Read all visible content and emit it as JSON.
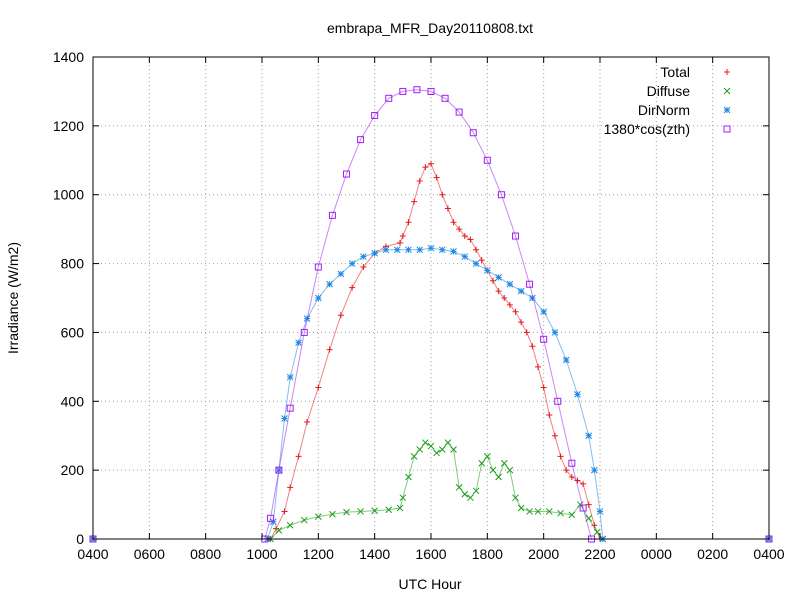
{
  "chart_data": {
    "type": "scatter",
    "title": "embrapa_MFR_Day20110808.txt",
    "xlabel": "UTC Hour",
    "ylabel": "Irradiance (W/m2)",
    "xlim": [
      4,
      28
    ],
    "ylim": [
      0,
      1400
    ],
    "x_tick_values": [
      4,
      6,
      8,
      10,
      12,
      14,
      16,
      18,
      20,
      22,
      24,
      26,
      28
    ],
    "x_tick_labels": [
      "0400",
      "0600",
      "0800",
      "1000",
      "1200",
      "1400",
      "1600",
      "1800",
      "2000",
      "2200",
      "0000",
      "0200",
      "0400"
    ],
    "y_tick_values": [
      0,
      200,
      400,
      600,
      800,
      1000,
      1200,
      1400
    ],
    "y_tick_labels": [
      "0",
      "200",
      "400",
      "600",
      "800",
      "1000",
      "1200",
      "1400"
    ],
    "grid": true,
    "legend_position": "top-right",
    "series": [
      {
        "name": "Total",
        "color": "#e41a1c",
        "marker": "plus",
        "points": [
          [
            4,
            0
          ],
          [
            10.3,
            0
          ],
          [
            10.5,
            30
          ],
          [
            10.8,
            80
          ],
          [
            11.0,
            150
          ],
          [
            11.3,
            240
          ],
          [
            11.6,
            340
          ],
          [
            12.0,
            440
          ],
          [
            12.4,
            550
          ],
          [
            12.8,
            650
          ],
          [
            13.2,
            730
          ],
          [
            13.6,
            790
          ],
          [
            14.0,
            830
          ],
          [
            14.4,
            850
          ],
          [
            14.9,
            860
          ],
          [
            15.0,
            880
          ],
          [
            15.2,
            920
          ],
          [
            15.4,
            980
          ],
          [
            15.6,
            1040
          ],
          [
            15.8,
            1080
          ],
          [
            16.0,
            1090
          ],
          [
            16.2,
            1050
          ],
          [
            16.4,
            1000
          ],
          [
            16.6,
            960
          ],
          [
            16.8,
            920
          ],
          [
            17.0,
            900
          ],
          [
            17.2,
            880
          ],
          [
            17.4,
            870
          ],
          [
            17.6,
            840
          ],
          [
            17.8,
            810
          ],
          [
            18.0,
            780
          ],
          [
            18.2,
            750
          ],
          [
            18.4,
            720
          ],
          [
            18.6,
            700
          ],
          [
            18.8,
            680
          ],
          [
            19.0,
            660
          ],
          [
            19.2,
            630
          ],
          [
            19.4,
            600
          ],
          [
            19.6,
            560
          ],
          [
            19.8,
            500
          ],
          [
            20.0,
            440
          ],
          [
            20.2,
            360
          ],
          [
            20.4,
            300
          ],
          [
            20.6,
            240
          ],
          [
            20.8,
            200
          ],
          [
            21.0,
            180
          ],
          [
            21.2,
            170
          ],
          [
            21.4,
            160
          ],
          [
            21.6,
            100
          ],
          [
            21.8,
            40
          ],
          [
            22.0,
            0
          ],
          [
            28,
            0
          ]
        ]
      },
      {
        "name": "Diffuse",
        "color": "#1b9e1b",
        "marker": "cross",
        "points": [
          [
            4,
            0
          ],
          [
            10.3,
            0
          ],
          [
            10.6,
            25
          ],
          [
            11.0,
            40
          ],
          [
            11.5,
            55
          ],
          [
            12.0,
            65
          ],
          [
            12.5,
            72
          ],
          [
            13.0,
            78
          ],
          [
            13.5,
            80
          ],
          [
            14.0,
            82
          ],
          [
            14.5,
            85
          ],
          [
            14.9,
            90
          ],
          [
            15.0,
            120
          ],
          [
            15.2,
            180
          ],
          [
            15.4,
            240
          ],
          [
            15.6,
            260
          ],
          [
            15.8,
            280
          ],
          [
            16.0,
            270
          ],
          [
            16.2,
            250
          ],
          [
            16.4,
            260
          ],
          [
            16.6,
            280
          ],
          [
            16.8,
            260
          ],
          [
            17.0,
            150
          ],
          [
            17.2,
            130
          ],
          [
            17.4,
            120
          ],
          [
            17.6,
            140
          ],
          [
            17.8,
            220
          ],
          [
            18.0,
            240
          ],
          [
            18.2,
            200
          ],
          [
            18.4,
            180
          ],
          [
            18.6,
            220
          ],
          [
            18.8,
            200
          ],
          [
            19.0,
            120
          ],
          [
            19.2,
            90
          ],
          [
            19.5,
            80
          ],
          [
            19.8,
            80
          ],
          [
            20.2,
            80
          ],
          [
            20.6,
            75
          ],
          [
            21.0,
            70
          ],
          [
            21.3,
            100
          ],
          [
            21.6,
            60
          ],
          [
            21.9,
            20
          ],
          [
            22.1,
            0
          ],
          [
            28,
            0
          ]
        ]
      },
      {
        "name": "DirNorm",
        "color": "#1e88e5",
        "marker": "star",
        "points": [
          [
            4,
            0
          ],
          [
            10.2,
            0
          ],
          [
            10.4,
            50
          ],
          [
            10.6,
            200
          ],
          [
            10.8,
            350
          ],
          [
            11.0,
            470
          ],
          [
            11.3,
            570
          ],
          [
            11.6,
            640
          ],
          [
            12.0,
            700
          ],
          [
            12.4,
            740
          ],
          [
            12.8,
            770
          ],
          [
            13.2,
            800
          ],
          [
            13.6,
            820
          ],
          [
            14.0,
            830
          ],
          [
            14.4,
            840
          ],
          [
            14.8,
            840
          ],
          [
            15.2,
            840
          ],
          [
            15.6,
            840
          ],
          [
            16.0,
            845
          ],
          [
            16.4,
            840
          ],
          [
            16.8,
            835
          ],
          [
            17.2,
            820
          ],
          [
            17.6,
            800
          ],
          [
            18.0,
            780
          ],
          [
            18.4,
            760
          ],
          [
            18.8,
            740
          ],
          [
            19.2,
            720
          ],
          [
            19.6,
            700
          ],
          [
            20.0,
            660
          ],
          [
            20.4,
            600
          ],
          [
            20.8,
            520
          ],
          [
            21.2,
            420
          ],
          [
            21.6,
            300
          ],
          [
            21.8,
            200
          ],
          [
            22.0,
            80
          ],
          [
            22.1,
            0
          ],
          [
            28,
            0
          ]
        ]
      },
      {
        "name": "1380*cos(zth)",
        "color": "#a020f0",
        "marker": "square",
        "points": [
          [
            4,
            0
          ],
          [
            10.1,
            0
          ],
          [
            10.3,
            60
          ],
          [
            10.6,
            200
          ],
          [
            11.0,
            380
          ],
          [
            11.5,
            600
          ],
          [
            12.0,
            790
          ],
          [
            12.5,
            940
          ],
          [
            13.0,
            1060
          ],
          [
            13.5,
            1160
          ],
          [
            14.0,
            1230
          ],
          [
            14.5,
            1280
          ],
          [
            15.0,
            1300
          ],
          [
            15.5,
            1305
          ],
          [
            16.0,
            1300
          ],
          [
            16.5,
            1280
          ],
          [
            17.0,
            1240
          ],
          [
            17.5,
            1180
          ],
          [
            18.0,
            1100
          ],
          [
            18.5,
            1000
          ],
          [
            19.0,
            880
          ],
          [
            19.5,
            740
          ],
          [
            20.0,
            580
          ],
          [
            20.5,
            400
          ],
          [
            21.0,
            220
          ],
          [
            21.4,
            90
          ],
          [
            21.7,
            0
          ],
          [
            28,
            0
          ]
        ]
      }
    ]
  }
}
